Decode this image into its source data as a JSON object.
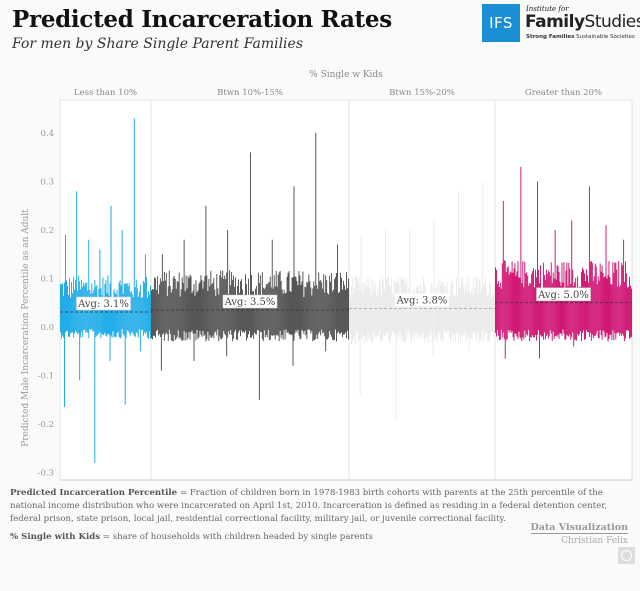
{
  "header": {
    "title": "Predicted Incarceration Rates",
    "subtitle": "For men by Share Single Parent Families"
  },
  "logo": {
    "box": "IFS",
    "institute": "Institute for",
    "name_bold": "Family",
    "name_rest": "Studies",
    "tag_bold": "Strong Families",
    "tag_rest": "Sustainable Societies"
  },
  "chart_data": {
    "type": "bar",
    "title": "Predicted Incarceration Rates",
    "subtitle": "For men by Share Single Parent Families",
    "column_header": "% Single w Kids",
    "ylabel": "Predicted Male Incarceration Percentile as an Adult",
    "xlabel": "",
    "ylim": [
      -0.31,
      0.45
    ],
    "yticks": [
      0.4,
      0.3,
      0.2,
      0.1,
      0.0,
      -0.1,
      -0.2,
      -0.3
    ],
    "ytick_labels": [
      "0.4",
      "0.3",
      "0.2",
      "0.1",
      "0.0",
      "-0.1",
      "-0.2",
      "-0.3"
    ],
    "grid": false,
    "series": [
      {
        "name": "Less than 10%",
        "color": "#0ea5e6",
        "avg": 0.031,
        "avg_label": "Avg: 3.1%",
        "bar_count": 90,
        "typical_high": 0.1,
        "typical_low": -0.02,
        "spikes_high": [
          0.19,
          0.28,
          0.18,
          0.16,
          0.25,
          0.2,
          0.43,
          0.15
        ],
        "spikes_low": [
          -0.165,
          -0.11,
          -0.28,
          -0.07,
          -0.16,
          -0.05
        ]
      },
      {
        "name": "Btwn 10%-15%",
        "color": "#444444",
        "avg": 0.035,
        "avg_label": "Avg: 3.5%",
        "bar_count": 200,
        "typical_high": 0.11,
        "typical_low": -0.025,
        "spikes_high": [
          0.15,
          0.18,
          0.25,
          0.2,
          0.36,
          0.18,
          0.29,
          0.4,
          0.17
        ],
        "spikes_low": [
          -0.09,
          -0.07,
          -0.06,
          -0.15,
          -0.08,
          -0.05
        ]
      },
      {
        "name": "Btwn 15%-20%",
        "color": "#e9e9e9",
        "avg": 0.038,
        "avg_label": "Avg: 3.8%",
        "bar_count": 150,
        "typical_high": 0.1,
        "typical_low": -0.03,
        "spikes_high": [
          0.19,
          0.2,
          0.2,
          0.22,
          0.28,
          0.3
        ],
        "spikes_low": [
          -0.14,
          -0.19,
          -0.06,
          -0.05
        ]
      },
      {
        "name": "Greater than 20%",
        "color": "#cc0066",
        "avg": 0.05,
        "avg_label": "Avg: 5.0%",
        "bar_count": 140,
        "typical_high": 0.13,
        "typical_low": -0.025,
        "spikes_high": [
          0.26,
          0.33,
          0.3,
          0.2,
          0.22,
          0.29,
          0.21,
          0.18
        ],
        "spikes_low": [
          -0.065,
          -0.065,
          -0.04,
          -0.03
        ]
      }
    ]
  },
  "footer": {
    "def1_term": "Predicted Incarceration Percentile",
    "def1_text": " = Fraction of children born in 1978-1983 birth cohorts with parents at the 25th percentile of the national income distribution who were incarcerated on April 1st, 2010. Incarceration is defined as residing in a federal detention center, federal prison, state prison, local jail, residential correctional facility, military jail, or juvenile correctional facility.",
    "def2_term": "% Single with Kids",
    "def2_text": " = share of households with children headed by single parents",
    "credit_title": "Data Visualization",
    "credit_name": "Christian Felix",
    "share_icon": "twitter-icon"
  }
}
